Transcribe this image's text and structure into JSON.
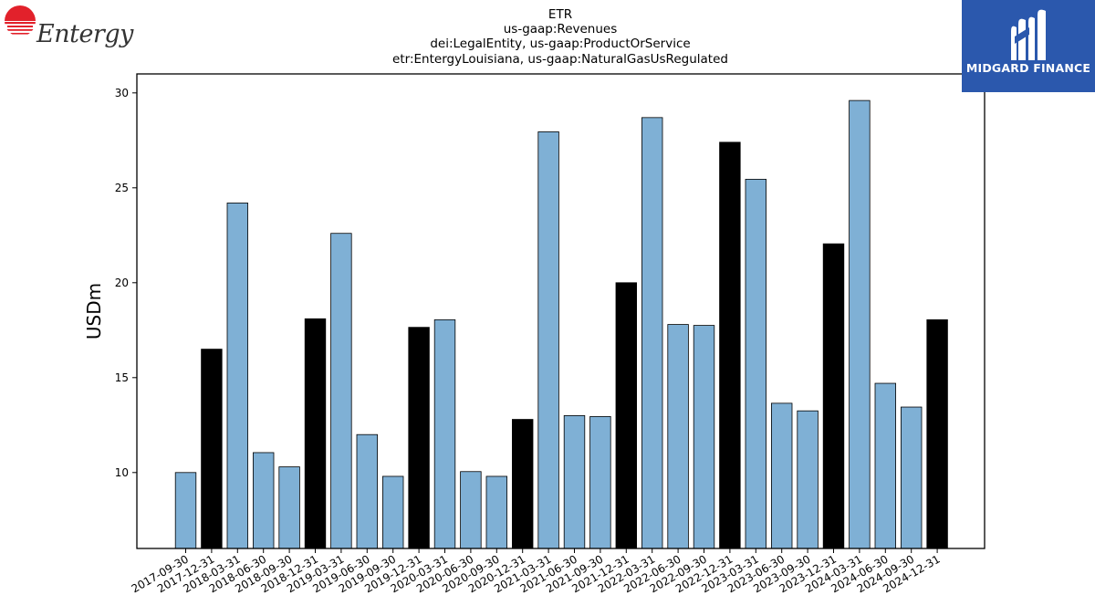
{
  "header": {
    "title_lines": [
      "ETR",
      "us-gaap:Revenues",
      "dei:LegalEntity, us-gaap:ProductOrService",
      "etr:EntergyLouisiana, us-gaap:NaturalGasUsRegulated"
    ]
  },
  "logos": {
    "left_text": "Entergy",
    "left_logo_color": "#e2212b",
    "right_text": "MIDGARD FINANCE",
    "right_bg_color": "#2b58ad"
  },
  "chart_data": {
    "type": "bar",
    "ylabel": "USDm",
    "xlabel": "",
    "ylim": [
      6,
      31
    ],
    "yticks": [
      10,
      15,
      20,
      25,
      30
    ],
    "grid": false,
    "colors": {
      "quarter": "#7fb0d5",
      "year_end": "#000000"
    },
    "categories": [
      "2017-09-30",
      "2017-12-31",
      "2018-03-31",
      "2018-06-30",
      "2018-09-30",
      "2018-12-31",
      "2019-03-31",
      "2019-06-30",
      "2019-09-30",
      "2019-12-31",
      "2020-03-31",
      "2020-06-30",
      "2020-09-30",
      "2020-12-31",
      "2021-03-31",
      "2021-06-30",
      "2021-09-30",
      "2021-12-31",
      "2022-03-31",
      "2022-06-30",
      "2022-09-30",
      "2022-12-31",
      "2023-03-31",
      "2023-06-30",
      "2023-09-30",
      "2023-12-31",
      "2024-03-31",
      "2024-06-30",
      "2024-09-30",
      "2024-12-31"
    ],
    "values": [
      10.0,
      16.5,
      24.2,
      11.05,
      10.3,
      18.1,
      22.6,
      12.0,
      9.8,
      17.65,
      18.05,
      10.05,
      9.8,
      12.8,
      27.95,
      13.0,
      12.95,
      20.0,
      28.7,
      17.8,
      17.75,
      27.4,
      25.45,
      13.65,
      13.25,
      22.05,
      29.6,
      14.7,
      13.45,
      18.05
    ],
    "year_end": [
      false,
      true,
      false,
      false,
      false,
      true,
      false,
      false,
      false,
      true,
      false,
      false,
      false,
      true,
      false,
      false,
      false,
      true,
      false,
      false,
      false,
      true,
      false,
      false,
      false,
      true,
      false,
      false,
      false,
      true
    ]
  }
}
